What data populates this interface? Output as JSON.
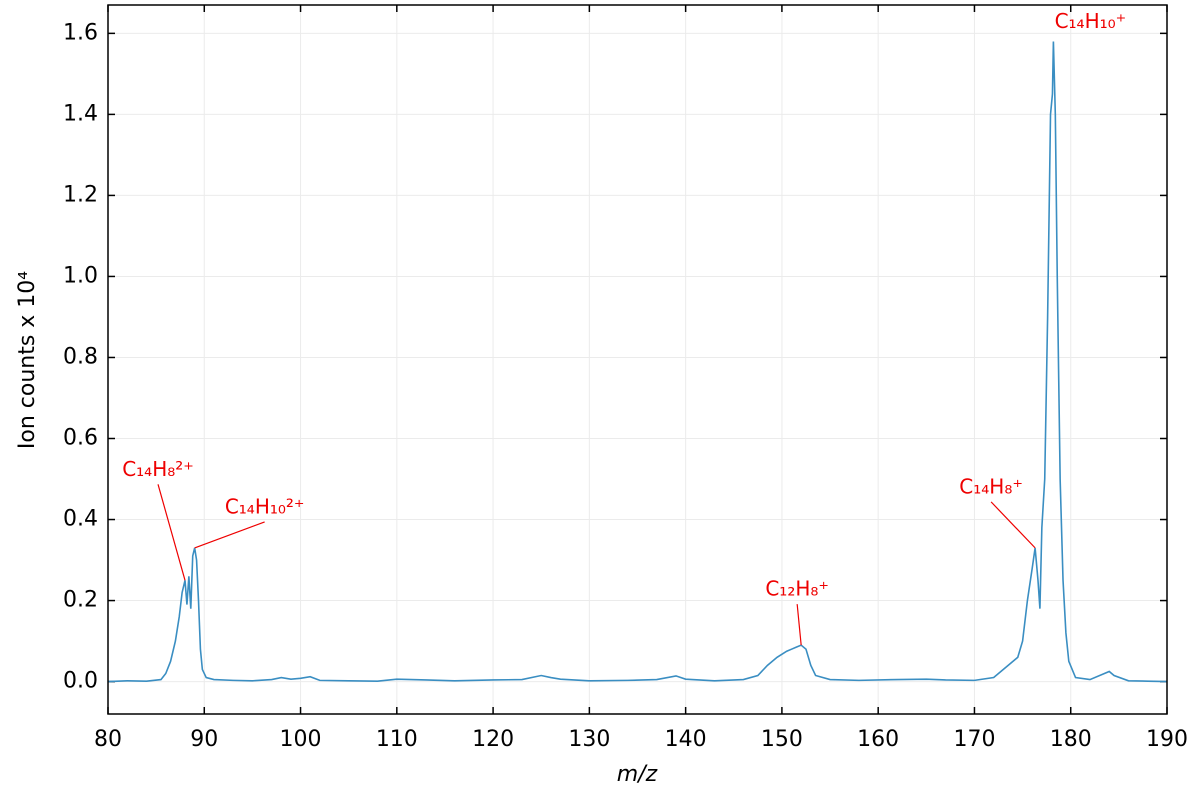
{
  "chart_data": {
    "type": "line",
    "xlabel": "m/z",
    "ylabel": "Ion counts x 10⁴",
    "x": [
      80,
      82,
      84,
      85.5,
      86,
      86.5,
      87,
      87.4,
      87.7,
      88.0,
      88.2,
      88.4,
      88.6,
      88.8,
      89.0,
      89.2,
      89.4,
      89.6,
      89.8,
      90.2,
      91,
      93,
      95,
      97,
      98,
      99,
      100,
      101,
      102,
      105,
      108,
      110,
      113,
      116,
      120,
      123,
      125,
      126,
      127,
      130,
      134,
      137,
      139,
      140,
      143,
      146,
      147.5,
      148.5,
      149.5,
      150.5,
      151,
      151.5,
      152,
      152.5,
      153,
      153.5,
      155,
      158,
      162,
      165,
      167,
      170,
      172,
      173.5,
      174.5,
      175,
      175.5,
      176,
      176.3,
      176.6,
      176.8,
      177.0,
      177.3,
      177.6,
      177.9,
      178.1,
      178.2,
      178.4,
      178.6,
      178.9,
      179.2,
      179.5,
      179.8,
      180.5,
      182,
      183.5,
      184,
      184.5,
      186,
      188,
      190
    ],
    "series": [
      {
        "color": "#3a8ec2",
        "values": [
          0,
          0.002,
          0.001,
          0.005,
          0.02,
          0.05,
          0.1,
          0.16,
          0.22,
          0.25,
          0.19,
          0.26,
          0.18,
          0.31,
          0.33,
          0.3,
          0.2,
          0.08,
          0.03,
          0.01,
          0.005,
          0.003,
          0.002,
          0.005,
          0.01,
          0.006,
          0.008,
          0.012,
          0.003,
          0.002,
          0.001,
          0.006,
          0.004,
          0.002,
          0.004,
          0.005,
          0.015,
          0.01,
          0.006,
          0.002,
          0.003,
          0.005,
          0.014,
          0.006,
          0.002,
          0.005,
          0.015,
          0.04,
          0.06,
          0.075,
          0.08,
          0.085,
          0.09,
          0.08,
          0.04,
          0.015,
          0.005,
          0.003,
          0.005,
          0.006,
          0.004,
          0.003,
          0.01,
          0.04,
          0.06,
          0.1,
          0.2,
          0.28,
          0.33,
          0.25,
          0.18,
          0.38,
          0.5,
          0.9,
          1.4,
          1.45,
          1.58,
          1.4,
          1.0,
          0.5,
          0.25,
          0.12,
          0.05,
          0.01,
          0.005,
          0.02,
          0.025,
          0.015,
          0.002,
          0.001,
          0
        ]
      }
    ],
    "xlim": [
      80,
      190
    ],
    "xticks": [
      80,
      90,
      100,
      110,
      120,
      130,
      140,
      150,
      160,
      170,
      180,
      190
    ],
    "ylim": [
      -0.08,
      1.67
    ],
    "yticks": [
      {
        "value": 0,
        "label": "0.0"
      },
      {
        "value": 0.2,
        "label": "0.2"
      },
      {
        "value": 0.4,
        "label": "0.4"
      },
      {
        "value": 0.6,
        "label": "0.6"
      },
      {
        "value": 0.8,
        "label": "0.8"
      },
      {
        "value": 1,
        "label": "1.0"
      },
      {
        "value": 1.2,
        "label": "1.2"
      },
      {
        "value": 1.4,
        "label": "1.4"
      },
      {
        "value": 1.6,
        "label": "1.6"
      }
    ],
    "grid": true,
    "annotation_color": "#ee0000",
    "annotations": [
      {
        "text": "C₁₄H₈²⁺",
        "x": 88.0,
        "y": 0.25
      },
      {
        "text": "C₁₄H₁₀²⁺",
        "x": 89.0,
        "y": 0.33
      },
      {
        "text": "C₁₂H₈⁺",
        "x": 152,
        "y": 0.09
      },
      {
        "text": "C₁₄H₈⁺",
        "x": 176.3,
        "y": 0.33
      },
      {
        "text": "C₁₄H₁₀⁺",
        "x": 178.2,
        "y": 1.58
      }
    ]
  }
}
